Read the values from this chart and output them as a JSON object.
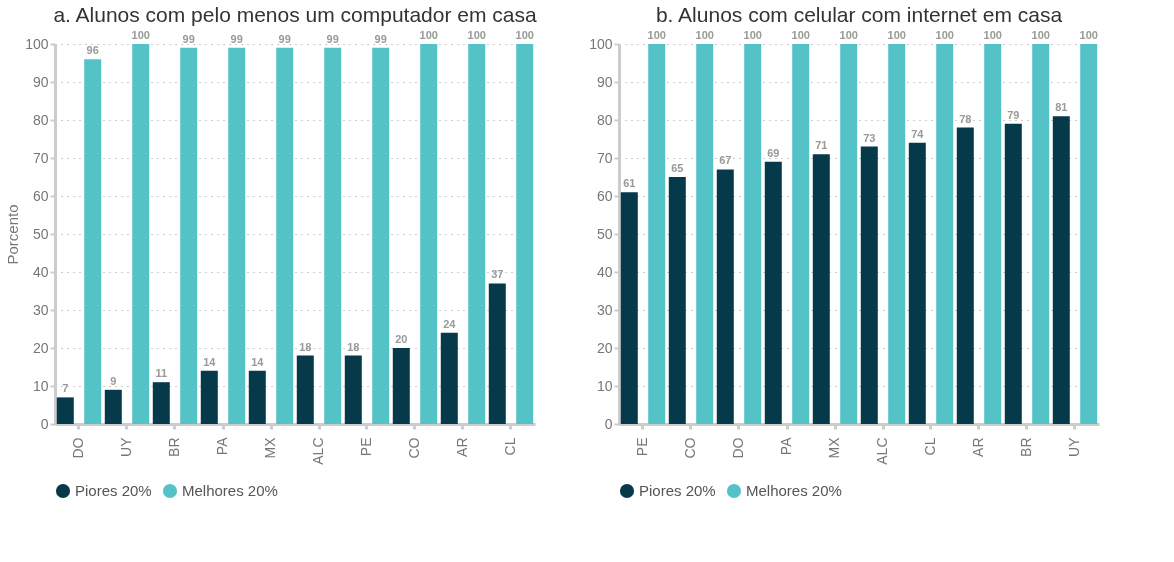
{
  "chart_data": [
    {
      "type": "bar",
      "title": "a. Alunos com pelo menos um computador em casa",
      "ylabel": "Porcento",
      "categories": [
        "DO",
        "UY",
        "BR",
        "PA",
        "MX",
        "ALC",
        "PE",
        "CO",
        "AR",
        "CL"
      ],
      "series": [
        {
          "name": "Piores 20%",
          "color": "#063a4b",
          "values": [
            7,
            9,
            11,
            14,
            14,
            18,
            18,
            20,
            24,
            37
          ]
        },
        {
          "name": "Melhores 20%",
          "color": "#54c3c8",
          "values": [
            96,
            100,
            99,
            99,
            99,
            99,
            99,
            100,
            100,
            100
          ]
        }
      ],
      "ylim": [
        0,
        100
      ],
      "yticks": [
        0,
        10,
        20,
        30,
        40,
        50,
        60,
        70,
        80,
        90,
        100
      ],
      "grid": "y",
      "legend": "bottom",
      "data_labels": true
    },
    {
      "type": "bar",
      "title": "b. Alunos com celular com internet em casa",
      "categories": [
        "PE",
        "CO",
        "DO",
        "PA",
        "MX",
        "ALC",
        "CL",
        "AR",
        "BR",
        "UY"
      ],
      "series": [
        {
          "name": "Piores 20%",
          "color": "#063a4b",
          "values": [
            61,
            65,
            67,
            69,
            71,
            73,
            74,
            78,
            79,
            81
          ]
        },
        {
          "name": "Melhores 20%",
          "color": "#54c3c8",
          "values": [
            100,
            100,
            100,
            100,
            100,
            100,
            100,
            100,
            100,
            100
          ]
        }
      ],
      "ylim": [
        0,
        100
      ],
      "yticks": [
        0,
        10,
        20,
        30,
        40,
        50,
        60,
        70,
        80,
        90,
        100
      ],
      "grid": "y",
      "legend": "bottom",
      "data_labels": true
    }
  ]
}
